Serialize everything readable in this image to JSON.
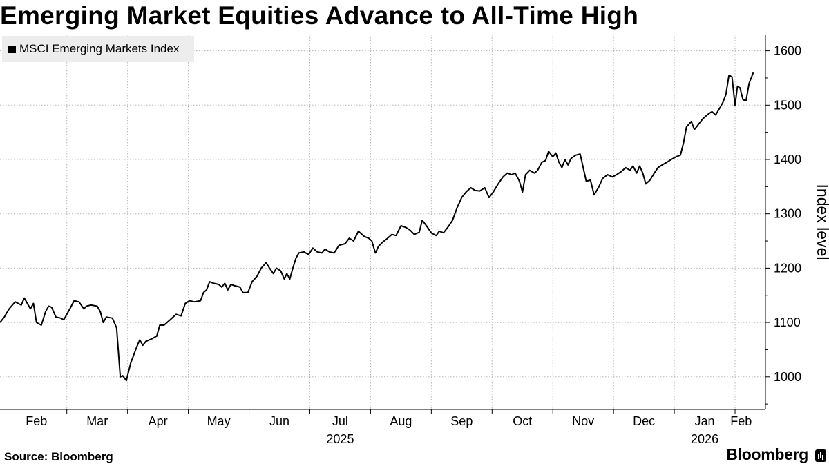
{
  "chart_data": {
    "type": "line",
    "title": "Emerging Market Equities Advance to All-Time High",
    "ylabel": "Index level",
    "xlabel": "",
    "ylim": [
      940,
      1630
    ],
    "y_ticks": [
      1000,
      1100,
      1200,
      1300,
      1400,
      1500,
      1600
    ],
    "x_ticks": [
      {
        "label": "Feb",
        "pos": 0.3
      },
      {
        "label": "Mar",
        "pos": 1.3
      },
      {
        "label": "Apr",
        "pos": 2.3
      },
      {
        "label": "May",
        "pos": 3.3
      },
      {
        "label": "Jun",
        "pos": 4.3
      },
      {
        "label": "Jul",
        "pos": 5.3
      },
      {
        "label": "Aug",
        "pos": 6.3
      },
      {
        "label": "Sep",
        "pos": 7.3
      },
      {
        "label": "Oct",
        "pos": 8.3
      },
      {
        "label": "Nov",
        "pos": 9.3
      },
      {
        "label": "Dec",
        "pos": 10.3
      },
      {
        "label": "Jan",
        "pos": 11.3
      },
      {
        "label": "Feb",
        "pos": 11.9
      }
    ],
    "year_labels": [
      {
        "label": "2025",
        "pos": 5.3
      },
      {
        "label": "2026",
        "pos": 11.3
      }
    ],
    "xlim": [
      -0.3,
      12.3
    ],
    "series": [
      {
        "name": "MSCI Emerging Markets Index",
        "color": "#000000",
        "points": [
          [
            -0.3,
            1100
          ],
          [
            -0.23,
            1110
          ],
          [
            -0.15,
            1125
          ],
          [
            -0.05,
            1138
          ],
          [
            0.05,
            1132
          ],
          [
            0.1,
            1145
          ],
          [
            0.2,
            1125
          ],
          [
            0.25,
            1135
          ],
          [
            0.3,
            1100
          ],
          [
            0.38,
            1095
          ],
          [
            0.45,
            1120
          ],
          [
            0.5,
            1130
          ],
          [
            0.55,
            1128
          ],
          [
            0.62,
            1110
          ],
          [
            0.7,
            1108
          ],
          [
            0.75,
            1105
          ],
          [
            0.85,
            1125
          ],
          [
            0.92,
            1140
          ],
          [
            1.0,
            1138
          ],
          [
            1.08,
            1125
          ],
          [
            1.12,
            1130
          ],
          [
            1.2,
            1132
          ],
          [
            1.3,
            1130
          ],
          [
            1.35,
            1120
          ],
          [
            1.4,
            1100
          ],
          [
            1.45,
            1110
          ],
          [
            1.55,
            1108
          ],
          [
            1.62,
            1090
          ],
          [
            1.68,
            1000
          ],
          [
            1.72,
            1002
          ],
          [
            1.78,
            993
          ],
          [
            1.85,
            1025
          ],
          [
            1.9,
            1040
          ],
          [
            1.95,
            1055
          ],
          [
            2.0,
            1068
          ],
          [
            2.05,
            1058
          ],
          [
            2.1,
            1065
          ],
          [
            2.2,
            1070
          ],
          [
            2.28,
            1075
          ],
          [
            2.33,
            1095
          ],
          [
            2.4,
            1095
          ],
          [
            2.5,
            1105
          ],
          [
            2.6,
            1115
          ],
          [
            2.68,
            1112
          ],
          [
            2.75,
            1135
          ],
          [
            2.82,
            1140
          ],
          [
            2.9,
            1138
          ],
          [
            3.0,
            1140
          ],
          [
            3.05,
            1155
          ],
          [
            3.1,
            1160
          ],
          [
            3.15,
            1175
          ],
          [
            3.22,
            1172
          ],
          [
            3.3,
            1170
          ],
          [
            3.35,
            1165
          ],
          [
            3.4,
            1172
          ],
          [
            3.45,
            1160
          ],
          [
            3.5,
            1170
          ],
          [
            3.55,
            1168
          ],
          [
            3.65,
            1165
          ],
          [
            3.7,
            1155
          ],
          [
            3.78,
            1155
          ],
          [
            3.85,
            1175
          ],
          [
            3.93,
            1185
          ],
          [
            4.0,
            1200
          ],
          [
            4.08,
            1210
          ],
          [
            4.15,
            1198
          ],
          [
            4.2,
            1190
          ],
          [
            4.25,
            1200
          ],
          [
            4.32,
            1195
          ],
          [
            4.38,
            1180
          ],
          [
            4.42,
            1190
          ],
          [
            4.47,
            1180
          ],
          [
            4.52,
            1200
          ],
          [
            4.57,
            1218
          ],
          [
            4.62,
            1228
          ],
          [
            4.7,
            1230
          ],
          [
            4.78,
            1225
          ],
          [
            4.85,
            1237
          ],
          [
            4.92,
            1230
          ],
          [
            5.0,
            1228
          ],
          [
            5.05,
            1235
          ],
          [
            5.12,
            1230
          ],
          [
            5.2,
            1228
          ],
          [
            5.28,
            1242
          ],
          [
            5.38,
            1245
          ],
          [
            5.45,
            1255
          ],
          [
            5.52,
            1250
          ],
          [
            5.6,
            1268
          ],
          [
            5.7,
            1258
          ],
          [
            5.77,
            1255
          ],
          [
            5.82,
            1250
          ],
          [
            5.88,
            1228
          ],
          [
            5.93,
            1240
          ],
          [
            6.0,
            1248
          ],
          [
            6.08,
            1255
          ],
          [
            6.15,
            1262
          ],
          [
            6.22,
            1260
          ],
          [
            6.3,
            1278
          ],
          [
            6.38,
            1275
          ],
          [
            6.45,
            1270
          ],
          [
            6.52,
            1262
          ],
          [
            6.6,
            1266
          ],
          [
            6.65,
            1288
          ],
          [
            6.72,
            1278
          ],
          [
            6.8,
            1265
          ],
          [
            6.88,
            1260
          ],
          [
            6.93,
            1268
          ],
          [
            7.0,
            1265
          ],
          [
            7.07,
            1275
          ],
          [
            7.15,
            1288
          ],
          [
            7.22,
            1310
          ],
          [
            7.3,
            1330
          ],
          [
            7.37,
            1340
          ],
          [
            7.45,
            1348
          ],
          [
            7.52,
            1343
          ],
          [
            7.6,
            1342
          ],
          [
            7.68,
            1348
          ],
          [
            7.75,
            1330
          ],
          [
            7.82,
            1340
          ],
          [
            7.9,
            1355
          ],
          [
            7.98,
            1368
          ],
          [
            8.05,
            1375
          ],
          [
            8.12,
            1372
          ],
          [
            8.18,
            1375
          ],
          [
            8.25,
            1360
          ],
          [
            8.3,
            1340
          ],
          [
            8.35,
            1372
          ],
          [
            8.42,
            1380
          ],
          [
            8.5,
            1375
          ],
          [
            8.55,
            1380
          ],
          [
            8.62,
            1395
          ],
          [
            8.68,
            1398
          ],
          [
            8.73,
            1415
          ],
          [
            8.8,
            1405
          ],
          [
            8.85,
            1412
          ],
          [
            8.9,
            1395
          ],
          [
            8.95,
            1385
          ],
          [
            9.0,
            1400
          ],
          [
            9.05,
            1390
          ],
          [
            9.1,
            1402
          ],
          [
            9.18,
            1408
          ],
          [
            9.25,
            1410
          ],
          [
            9.3,
            1385
          ],
          [
            9.35,
            1360
          ],
          [
            9.42,
            1362
          ],
          [
            9.48,
            1335
          ],
          [
            9.55,
            1348
          ],
          [
            9.62,
            1365
          ],
          [
            9.7,
            1372
          ],
          [
            9.78,
            1368
          ],
          [
            9.85,
            1372
          ],
          [
            9.93,
            1378
          ],
          [
            10.0,
            1385
          ],
          [
            10.07,
            1380
          ],
          [
            10.12,
            1388
          ],
          [
            10.18,
            1375
          ],
          [
            10.23,
            1388
          ],
          [
            10.28,
            1375
          ],
          [
            10.33,
            1355
          ],
          [
            10.4,
            1362
          ],
          [
            10.47,
            1375
          ],
          [
            10.53,
            1385
          ],
          [
            10.6,
            1390
          ],
          [
            10.68,
            1395
          ],
          [
            10.75,
            1400
          ],
          [
            10.83,
            1405
          ],
          [
            10.9,
            1408
          ],
          [
            10.95,
            1430
          ],
          [
            11.0,
            1460
          ],
          [
            11.08,
            1470
          ],
          [
            11.13,
            1455
          ],
          [
            11.2,
            1465
          ],
          [
            11.27,
            1475
          ],
          [
            11.35,
            1483
          ],
          [
            11.42,
            1488
          ],
          [
            11.48,
            1482
          ],
          [
            11.55,
            1495
          ],
          [
            11.6,
            1505
          ],
          [
            11.65,
            1520
          ],
          [
            11.7,
            1555
          ],
          [
            11.75,
            1552
          ],
          [
            11.8,
            1500
          ],
          [
            11.84,
            1535
          ],
          [
            11.88,
            1532
          ],
          [
            11.93,
            1510
          ],
          [
            11.98,
            1508
          ],
          [
            12.03,
            1540
          ],
          [
            12.1,
            1560
          ]
        ]
      }
    ]
  },
  "legend": {
    "label": "MSCI Emerging Markets Index"
  },
  "footer": {
    "source": "Source: Bloomberg",
    "brand": "Bloomberg"
  }
}
